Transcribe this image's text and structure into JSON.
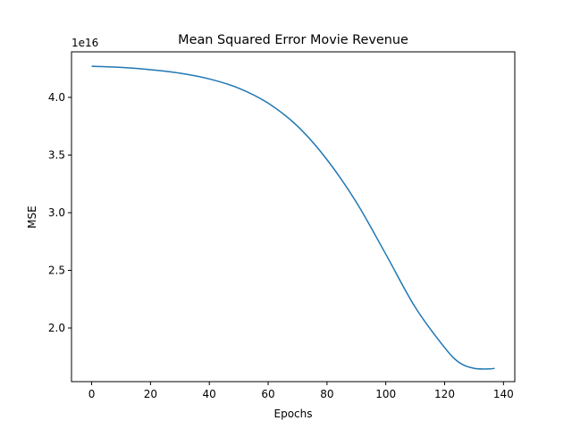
{
  "chart_data": {
    "type": "line",
    "title": "Mean Squared Error Movie Revenue",
    "xlabel": "Epochs",
    "ylabel": "MSE",
    "offset_label": "1e16",
    "xlim": [
      -6.85,
      143.85
    ],
    "ylim": [
      1.535,
      4.395
    ],
    "xticks": [
      {
        "value": 0,
        "label": "0"
      },
      {
        "value": 20,
        "label": "20"
      },
      {
        "value": 40,
        "label": "40"
      },
      {
        "value": 60,
        "label": "60"
      },
      {
        "value": 80,
        "label": "80"
      },
      {
        "value": 100,
        "label": "100"
      },
      {
        "value": 120,
        "label": "120"
      },
      {
        "value": 140,
        "label": "140"
      }
    ],
    "yticks": [
      {
        "value": 2.0,
        "label": "2.0"
      },
      {
        "value": 2.5,
        "label": "2.5"
      },
      {
        "value": 3.0,
        "label": "3.0"
      },
      {
        "value": 3.5,
        "label": "3.5"
      },
      {
        "value": 4.0,
        "label": "4.0"
      }
    ],
    "grid": false,
    "series": [
      {
        "color": "#1f77b4",
        "x": [
          0,
          10,
          20,
          30,
          40,
          50,
          60,
          70,
          80,
          90,
          100,
          110,
          120,
          125,
          130,
          135,
          137
        ],
        "y": [
          4.27,
          4.26,
          4.24,
          4.21,
          4.16,
          4.08,
          3.95,
          3.75,
          3.46,
          3.09,
          2.64,
          2.18,
          1.83,
          1.7,
          1.65,
          1.645,
          1.65
        ]
      }
    ]
  }
}
